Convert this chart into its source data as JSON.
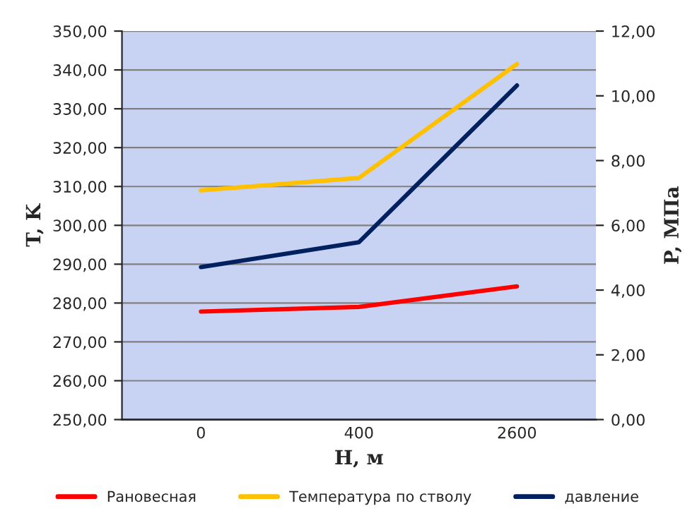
{
  "chart_data": {
    "type": "line",
    "xlabel": "Н, м",
    "ylabel": "T, K",
    "y2label": "P, МПа",
    "categories": [
      "0",
      "400",
      "2600"
    ],
    "series": [
      {
        "name": "Рановесная",
        "color": "#ff0000",
        "values": [
          277.8,
          279.0,
          284.3
        ]
      },
      {
        "name": "Температура по стволу",
        "color": "#ffc000",
        "values": [
          309.0,
          312.2,
          341.5
        ]
      },
      {
        "name": "давление",
        "color": "#002060",
        "values": [
          4.71,
          5.48,
          10.32
        ],
        "axis": "y2"
      }
    ],
    "ylim": [
      250,
      350
    ],
    "yticks": [
      {
        "value": 250,
        "label": "250,00"
      },
      {
        "value": 260,
        "label": "260,00"
      },
      {
        "value": 270,
        "label": "270,00"
      },
      {
        "value": 280,
        "label": "280,00"
      },
      {
        "value": 290,
        "label": "290,00"
      },
      {
        "value": 300,
        "label": "300,00"
      },
      {
        "value": 310,
        "label": "310,00"
      },
      {
        "value": 320,
        "label": "320,00"
      },
      {
        "value": 330,
        "label": "330,00"
      },
      {
        "value": 340,
        "label": "340,00"
      },
      {
        "value": 350,
        "label": "350,00"
      }
    ],
    "y2lim": [
      0,
      12
    ],
    "y2ticks": [
      {
        "value": 0,
        "label": "0,00"
      },
      {
        "value": 2,
        "label": "2,00"
      },
      {
        "value": 4,
        "label": "4,00"
      },
      {
        "value": 6,
        "label": "6,00"
      },
      {
        "value": 8,
        "label": "8,00"
      },
      {
        "value": 10,
        "label": "10,00"
      },
      {
        "value": 12,
        "label": "12,00"
      }
    ],
    "grid": true,
    "legend": "bottom",
    "marker": "none",
    "line_style": "solid"
  }
}
